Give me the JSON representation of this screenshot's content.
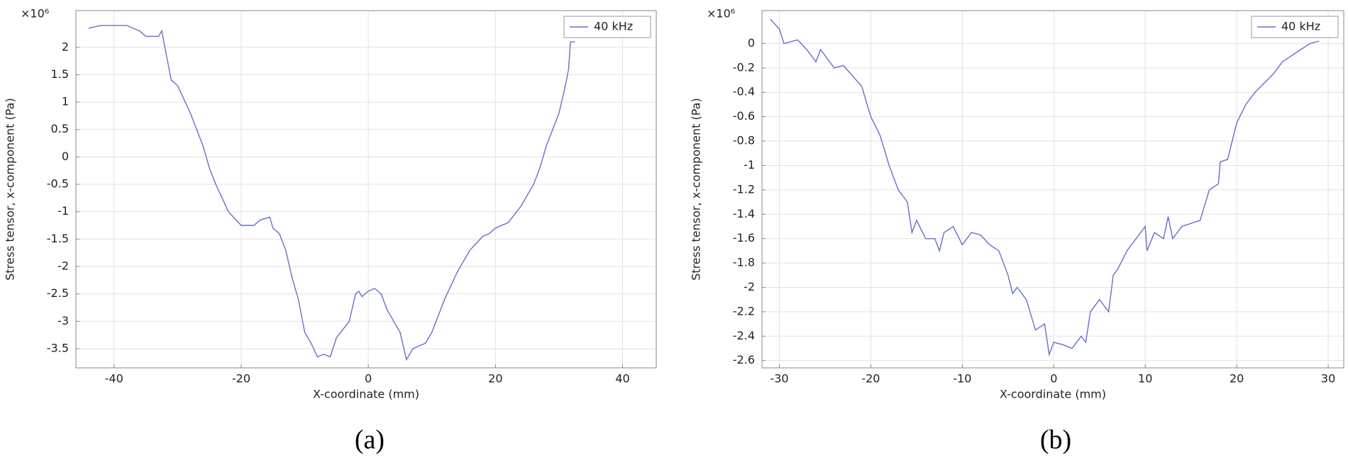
{
  "chart_data": [
    {
      "type": "line",
      "caption": "(a)",
      "x_label": "X-coordinate (mm)",
      "y_label": "Stress tensor, x-component (Pa)",
      "y_scale_label": "×10⁶",
      "xlim": [
        -46,
        45.3
      ],
      "ylim": [
        -3.85,
        2.67
      ],
      "xticks": [
        -40,
        -20,
        0,
        20,
        40
      ],
      "yticks": [
        -3.5,
        -3,
        -2.5,
        -2,
        -1.5,
        -1,
        -0.5,
        0,
        0.5,
        1,
        1.5,
        2
      ],
      "grid": true,
      "legend": "upper right",
      "x": [
        -44,
        -42,
        -40,
        -38,
        -36,
        -35,
        -33,
        -32.5,
        -32,
        -31,
        -30,
        -28,
        -26,
        -25,
        -24,
        -22,
        -20,
        -18,
        -17,
        -15.5,
        -15,
        -14,
        -13,
        -12,
        -11,
        -10,
        -9,
        -8,
        -7,
        -6,
        -5,
        -3,
        -2,
        -1.5,
        -1,
        0,
        1,
        2,
        3,
        5,
        6,
        7,
        9,
        10,
        11,
        12,
        14,
        16,
        18,
        19,
        20,
        22,
        24,
        26,
        27,
        28,
        30,
        31,
        31.5,
        31.8,
        32.5
      ],
      "series": [
        {
          "name": "40 kHz",
          "color": "#6670c4",
          "values": [
            2.35,
            2.4,
            2.4,
            2.4,
            2.3,
            2.2,
            2.2,
            2.3,
            2.0,
            1.4,
            1.3,
            0.8,
            0.2,
            -0.2,
            -0.5,
            -1.0,
            -1.25,
            -1.25,
            -1.15,
            -1.1,
            -1.3,
            -1.4,
            -1.7,
            -2.2,
            -2.6,
            -3.2,
            -3.4,
            -3.65,
            -3.6,
            -3.65,
            -3.3,
            -3.0,
            -2.5,
            -2.45,
            -2.55,
            -2.45,
            -2.4,
            -2.5,
            -2.8,
            -3.2,
            -3.7,
            -3.5,
            -3.4,
            -3.2,
            -2.9,
            -2.6,
            -2.1,
            -1.7,
            -1.45,
            -1.4,
            -1.3,
            -1.2,
            -0.9,
            -0.5,
            -0.2,
            0.2,
            0.8,
            1.3,
            1.6,
            2.1,
            2.1
          ]
        }
      ]
    },
    {
      "type": "line",
      "caption": "(b)",
      "x_label": "X-coordinate (mm)",
      "y_label": "Stress tensor, x-component (Pa)",
      "y_scale_label": "×10⁶",
      "xlim": [
        -31.9,
        31.7
      ],
      "ylim": [
        -2.66,
        0.27
      ],
      "xticks": [
        -30,
        -20,
        -10,
        0,
        10,
        20,
        30
      ],
      "yticks": [
        -2.6,
        -2.4,
        -2.2,
        -2,
        -1.8,
        -1.6,
        -1.4,
        -1.2,
        -1,
        -0.8,
        -0.6,
        -0.4,
        -0.2,
        0
      ],
      "grid": true,
      "legend": "upper right",
      "x": [
        -31,
        -30,
        -29.5,
        -28,
        -27,
        -26,
        -25.5,
        -24,
        -23,
        -21,
        -20,
        -19,
        -18,
        -17,
        -16,
        -15.5,
        -15,
        -14,
        -13,
        -12.5,
        -12,
        -11,
        -10,
        -9,
        -8,
        -7,
        -6,
        -5,
        -4.5,
        -4,
        -3,
        -2,
        -1,
        -0.5,
        0,
        1,
        2,
        3,
        3.5,
        4,
        5,
        6,
        6.5,
        7,
        8,
        9,
        10,
        10.2,
        11,
        12,
        12.5,
        13,
        14,
        16,
        17,
        18,
        18.2,
        19,
        20,
        21,
        22,
        24,
        25,
        26,
        27,
        28,
        29
      ],
      "series": [
        {
          "name": "40 kHz",
          "color": "#6670c4",
          "values": [
            0.2,
            0.12,
            0.0,
            0.03,
            -0.05,
            -0.15,
            -0.05,
            -0.2,
            -0.18,
            -0.35,
            -0.6,
            -0.75,
            -1.0,
            -1.2,
            -1.3,
            -1.55,
            -1.45,
            -1.6,
            -1.6,
            -1.7,
            -1.55,
            -1.5,
            -1.65,
            -1.55,
            -1.57,
            -1.65,
            -1.7,
            -1.9,
            -2.05,
            -2.0,
            -2.1,
            -2.35,
            -2.3,
            -2.55,
            -2.45,
            -2.47,
            -2.5,
            -2.4,
            -2.45,
            -2.2,
            -2.1,
            -2.2,
            -1.9,
            -1.85,
            -1.7,
            -1.6,
            -1.5,
            -1.7,
            -1.55,
            -1.6,
            -1.42,
            -1.6,
            -1.5,
            -1.45,
            -1.2,
            -1.15,
            -0.97,
            -0.95,
            -0.65,
            -0.5,
            -0.4,
            -0.25,
            -0.15,
            -0.1,
            -0.05,
            0.0,
            0.02
          ]
        }
      ]
    }
  ]
}
